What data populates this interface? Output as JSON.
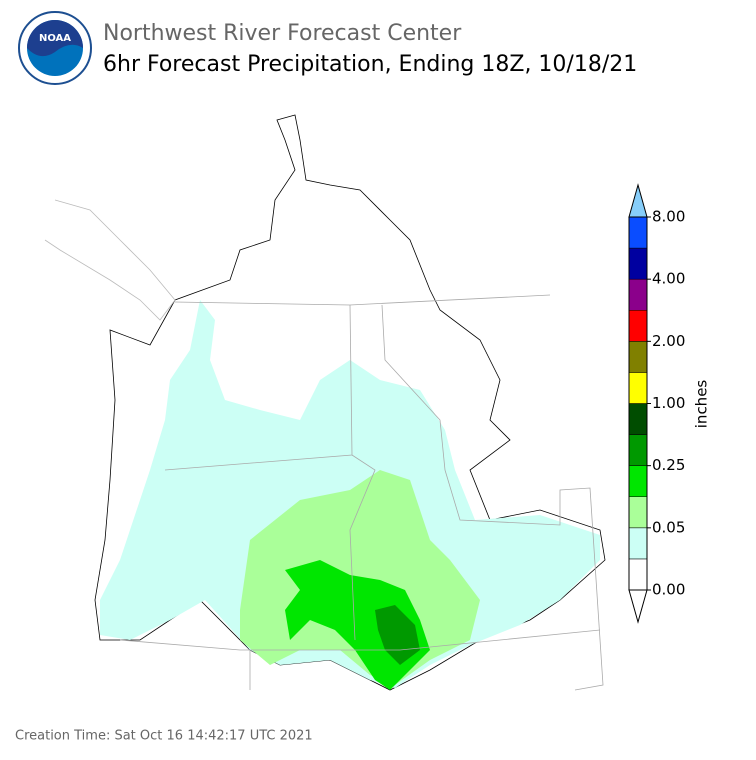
{
  "header": {
    "logo_text": "NOAA",
    "title": "Northwest River Forecast Center",
    "subtitle": "6hr Forecast Precipitation, Ending 18Z, 10/18/21"
  },
  "legend": {
    "unit": "inches",
    "labels": [
      "0.00",
      "0.05",
      "0.25",
      "1.00",
      "2.00",
      "4.00",
      "8.00"
    ],
    "colors": [
      "#ffffff",
      "#ccfff5",
      "#aaff99",
      "#00e600",
      "#009900",
      "#004d00",
      "#ffff00",
      "#808000",
      "#ff0000",
      "#8b008b",
      "#0000a0",
      "#0a4dff"
    ],
    "under_color": "#ffffff",
    "over_color": "#87cefa"
  },
  "footer": {
    "creation_time": "Creation Time: Sat Oct 16 14:42:17 UTC 2021"
  }
}
